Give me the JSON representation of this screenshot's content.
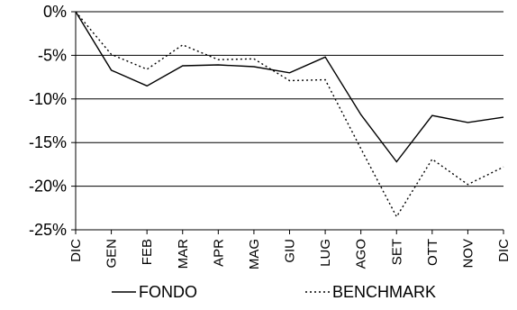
{
  "chart_data": {
    "type": "line",
    "categories": [
      "DIC",
      "GEN",
      "FEB",
      "MAR",
      "APR",
      "MAG",
      "GIU",
      "LUG",
      "AGO",
      "SET",
      "OTT",
      "NOV",
      "DIC"
    ],
    "series": [
      {
        "name": "FONDO",
        "style": "solid",
        "color": "#000000",
        "values": [
          0,
          -6.7,
          -8.5,
          -6.2,
          -6.1,
          -6.3,
          -7.0,
          -5.2,
          -11.8,
          -17.2,
          -11.9,
          -12.7,
          -12.1
        ]
      },
      {
        "name": "BENCHMARK",
        "style": "dotted",
        "color": "#000000",
        "values": [
          0,
          -4.9,
          -6.6,
          -3.8,
          -5.5,
          -5.4,
          -7.9,
          -7.8,
          -15.7,
          -23.5,
          -16.9,
          -19.8,
          -17.8
        ]
      }
    ],
    "yticks": [
      0,
      -5,
      -10,
      -15,
      -20,
      -25
    ],
    "ytick_labels": [
      "0%",
      "-5%",
      "-10%",
      "-15%",
      "-20%",
      "-25%"
    ],
    "ylim": [
      -25,
      0
    ],
    "grid": "horizontal",
    "legend": "bottom"
  }
}
